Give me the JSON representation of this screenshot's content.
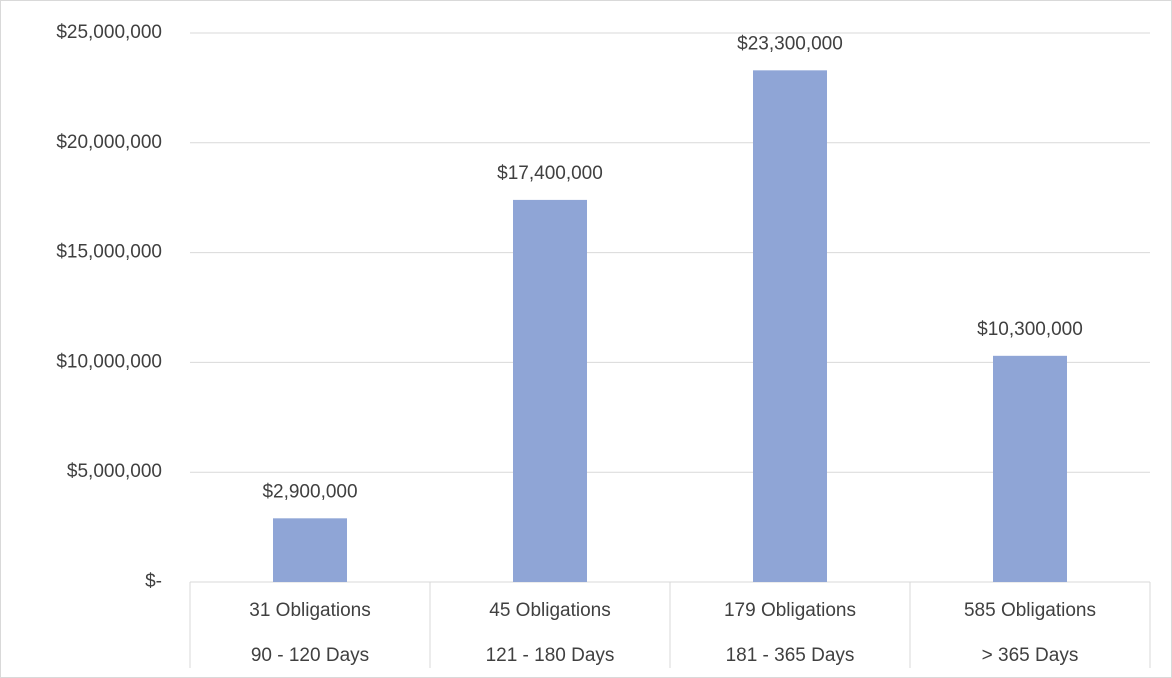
{
  "chart_data": {
    "type": "bar",
    "categories": [
      [
        "31 Obligations",
        "90 - 120 Days"
      ],
      [
        "45 Obligations",
        "121 - 180 Days"
      ],
      [
        "179 Obligations",
        "181 - 365 Days"
      ],
      [
        "585 Obligations",
        "> 365 Days"
      ]
    ],
    "values": [
      2900000,
      17400000,
      23300000,
      10300000
    ],
    "value_labels": [
      "$2,900,000",
      "$17,400,000",
      "$23,300,000",
      "$10,300,000"
    ],
    "color": "#8fa5d6",
    "ylim": [
      0,
      25000000
    ],
    "yticks": [
      {
        "value": 0,
        "label": "$-"
      },
      {
        "value": 5000000,
        "label": "$5,000,000"
      },
      {
        "value": 10000000,
        "label": "$10,000,000"
      },
      {
        "value": 15000000,
        "label": "$15,000,000"
      },
      {
        "value": 20000000,
        "label": "$20,000,000"
      },
      {
        "value": 25000000,
        "label": "$25,000,000"
      }
    ],
    "grid": true
  }
}
